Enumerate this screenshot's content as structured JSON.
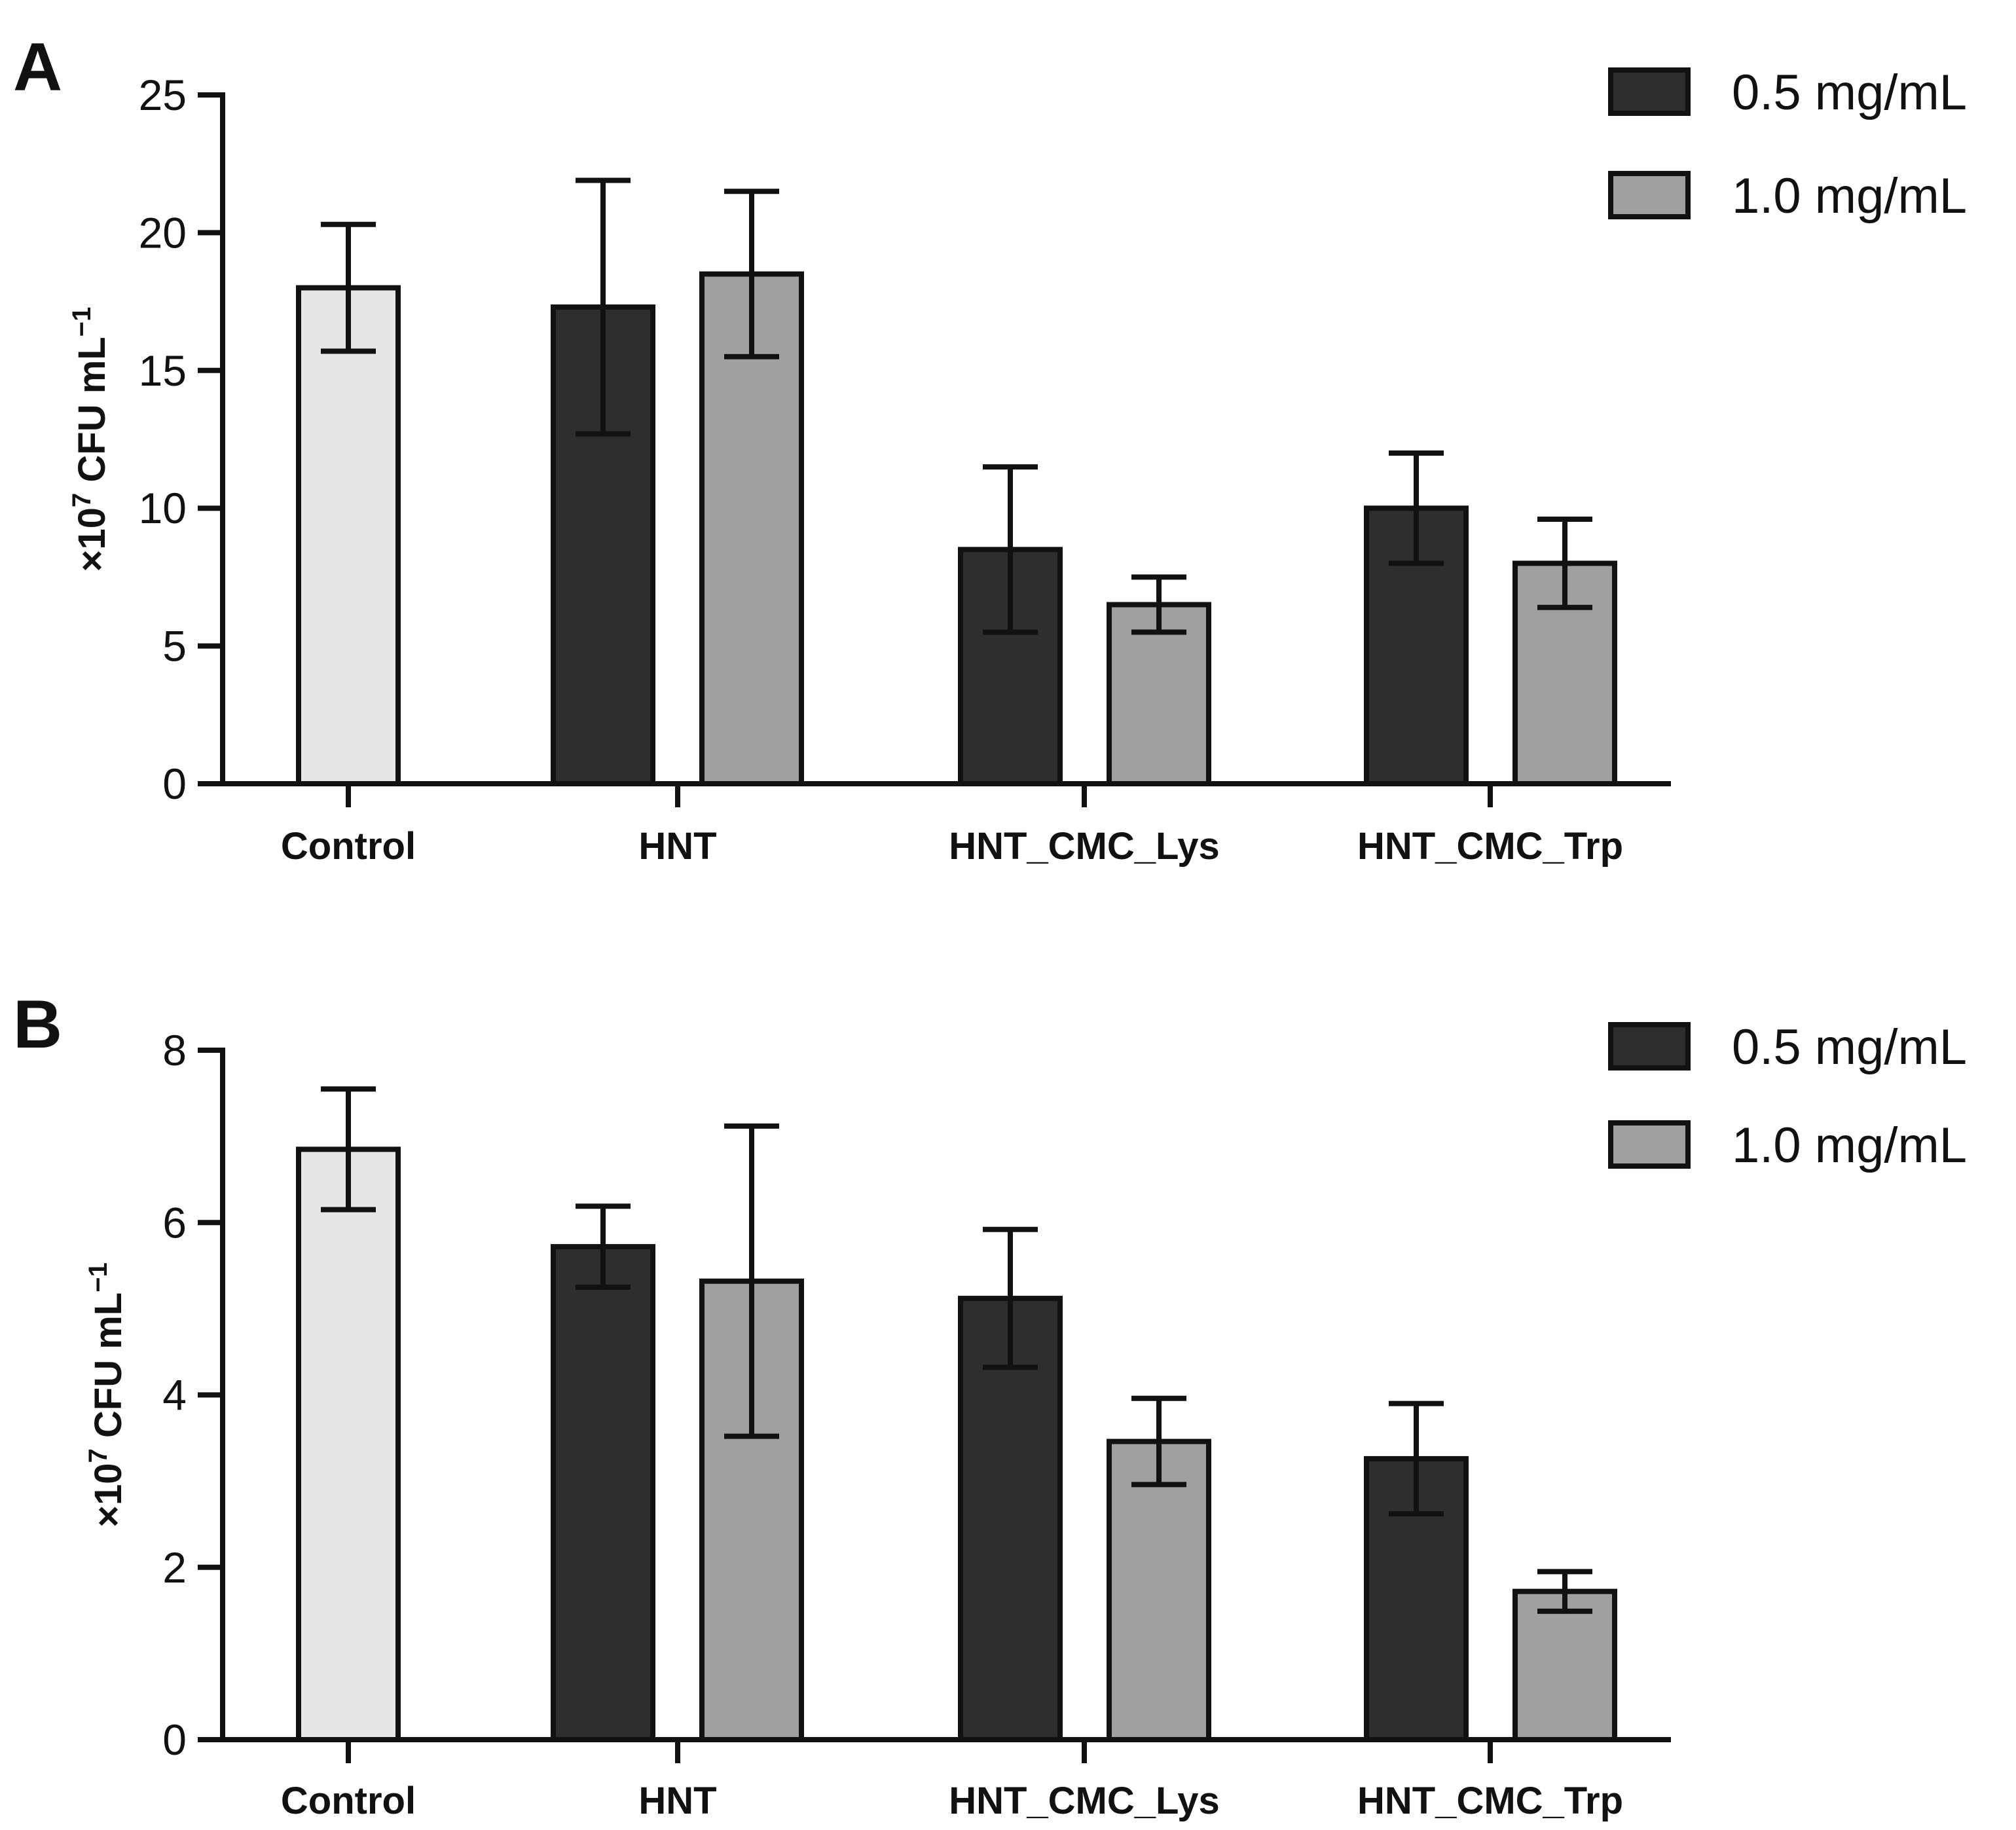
{
  "colors": {
    "dose_05": "#2e2e2e",
    "dose_10": "#a0a0a0",
    "control": "#e6e6e6",
    "axis": "#111111"
  },
  "legend": [
    {
      "label": "0.5 mg/mL",
      "color_key": "dose_05"
    },
    {
      "label": "1.0 mg/mL",
      "color_key": "dose_10"
    }
  ],
  "chart_data": [
    {
      "type": "bar",
      "panel": "A",
      "categories": [
        "Control",
        "HNT",
        "HNT_CMC_Lys",
        "HNT_CMC_Trp"
      ],
      "ylabel": {
        "prefix": "×10",
        "sup": "7",
        "main": " CFU mL",
        "unit_sup": "−1"
      },
      "ylim": [
        0,
        25
      ],
      "yticks": [
        0,
        5,
        10,
        15,
        20,
        25
      ],
      "series": [
        {
          "name": "Control",
          "color_key": "control",
          "values": [
            18.0,
            null,
            null,
            null
          ],
          "err": [
            2.3,
            null,
            null,
            null
          ]
        },
        {
          "name": "0.5 mg/mL",
          "color_key": "dose_05",
          "values": [
            null,
            17.3,
            8.5,
            10.0
          ],
          "err": [
            null,
            4.6,
            3.0,
            2.0
          ]
        },
        {
          "name": "1.0 mg/mL",
          "color_key": "dose_10",
          "values": [
            null,
            18.5,
            6.5,
            8.0
          ],
          "err": [
            null,
            3.0,
            1.0,
            1.6
          ]
        }
      ]
    },
    {
      "type": "bar",
      "panel": "B",
      "categories": [
        "Control",
        "HNT",
        "HNT_CMC_Lys",
        "HNT_CMC_Trp"
      ],
      "ylabel": {
        "prefix": "×10",
        "sup": "7",
        "main": " CFU mL",
        "unit_sup": "−1"
      },
      "ylim": [
        0,
        8
      ],
      "yticks": [
        0,
        2,
        4,
        6,
        8
      ],
      "series": [
        {
          "name": "Control",
          "color_key": "control",
          "values": [
            6.85,
            null,
            null,
            null
          ],
          "err": [
            0.7,
            null,
            null,
            null
          ]
        },
        {
          "name": "0.5 mg/mL",
          "color_key": "dose_05",
          "values": [
            null,
            5.72,
            5.12,
            3.26
          ],
          "err": [
            null,
            0.47,
            0.8,
            0.64
          ]
        },
        {
          "name": "1.0 mg/mL",
          "color_key": "dose_10",
          "values": [
            null,
            5.32,
            3.46,
            1.72
          ],
          "err": [
            null,
            1.8,
            0.5,
            0.23
          ]
        }
      ]
    }
  ]
}
